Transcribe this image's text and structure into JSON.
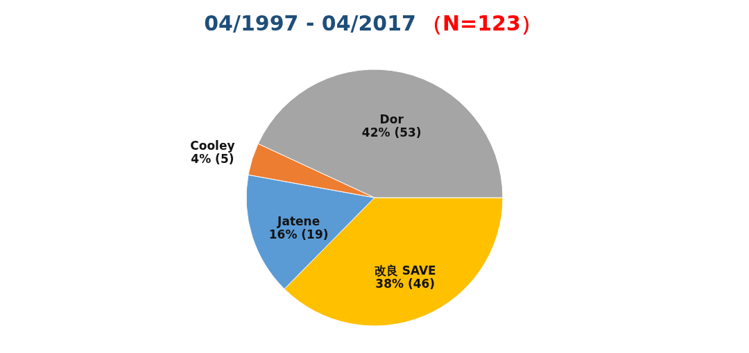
{
  "chart_data": {
    "type": "pie",
    "title": "04/1997 -  04/2017",
    "annotations": [
      "（N=123）"
    ],
    "categories": [
      "改良 SAVE",
      "Jatene",
      "Cooley",
      "Dor"
    ],
    "values": [
      46,
      19,
      5,
      53
    ],
    "value_labels": [
      "38% (46)",
      "16% (19)",
      "4% (5)",
      "42% (53)"
    ],
    "colors": [
      "#ffc000",
      "#5b9bd5",
      "#ed7d31",
      "#a5a5a5"
    ],
    "legend": false
  }
}
